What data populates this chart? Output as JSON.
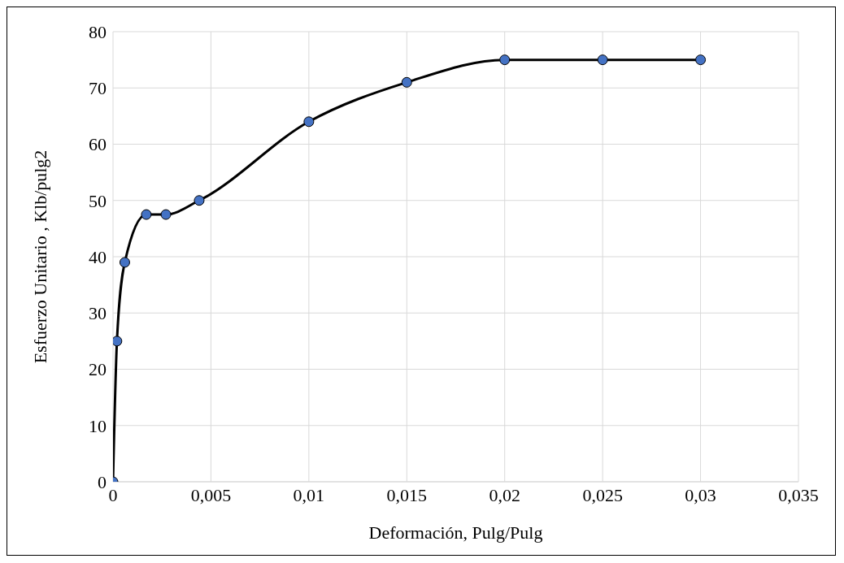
{
  "chart_data": {
    "type": "line",
    "xlabel": "Deformación, Pulg/Pulg",
    "ylabel": "Esfuerzo Unitario , Klb/pulg2",
    "x": [
      0,
      0.0002,
      0.0006,
      0.0017,
      0.0027,
      0.0044,
      0.01,
      0.015,
      0.02,
      0.025,
      0.03
    ],
    "series": [
      {
        "color": "#4472c4",
        "values": [
          0,
          25,
          39,
          47.5,
          47.5,
          50,
          64,
          71,
          75,
          75,
          75
        ]
      }
    ],
    "xlim": [
      0,
      0.035
    ],
    "xticks": [
      0,
      {
        "value": 0.005,
        "label": "0,005"
      },
      {
        "value": 0.01,
        "label": "0,01"
      },
      {
        "value": 0.015,
        "label": "0,015"
      },
      {
        "value": 0.02,
        "label": "0,02"
      },
      {
        "value": 0.025,
        "label": "0,025"
      },
      {
        "value": 0.03,
        "label": "0,03"
      },
      {
        "value": 0.035,
        "label": "0,035"
      }
    ],
    "ylim": [
      0,
      80
    ],
    "yticks": [
      0,
      10,
      20,
      30,
      40,
      50,
      60,
      70,
      80
    ],
    "grid": true,
    "marker": "circle",
    "line_style": "solid",
    "legend": false
  }
}
